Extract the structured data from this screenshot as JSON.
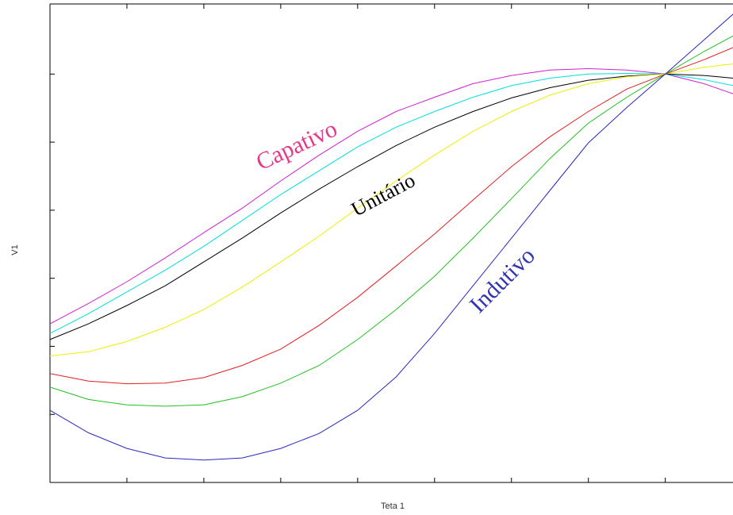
{
  "chart_data": {
    "type": "line",
    "xlabel": "Teta 1",
    "ylabel": "V1",
    "x": [
      0,
      0.5,
      1,
      1.5,
      2,
      2.5,
      3,
      3.5,
      4,
      4.5,
      5,
      5.5,
      6,
      6.5,
      7,
      7.5,
      8,
      8.5,
      8.88
    ],
    "series": [
      {
        "color": "#d020d0",
        "values": [
          2.33,
          2.63,
          2.95,
          3.3,
          3.67,
          4.03,
          4.43,
          4.81,
          5.16,
          5.45,
          5.66,
          5.86,
          5.98,
          6.06,
          6.08,
          6.06,
          6.0,
          5.86,
          5.71
        ]
      },
      {
        "color": "#00dede",
        "values": [
          2.19,
          2.48,
          2.8,
          3.12,
          3.47,
          3.85,
          4.23,
          4.58,
          4.93,
          5.22,
          5.45,
          5.66,
          5.83,
          5.94,
          6.0,
          6.01,
          6.0,
          5.92,
          5.83
        ]
      },
      {
        "color": "#000000",
        "values": [
          2.1,
          2.33,
          2.6,
          2.89,
          3.24,
          3.59,
          3.96,
          4.31,
          4.64,
          4.95,
          5.22,
          5.45,
          5.65,
          5.8,
          5.91,
          5.97,
          6.0,
          5.98,
          5.94
        ]
      },
      {
        "color": "#eeee00",
        "values": [
          1.86,
          1.92,
          2.07,
          2.28,
          2.54,
          2.87,
          3.24,
          3.62,
          4.03,
          4.43,
          4.81,
          5.16,
          5.45,
          5.69,
          5.86,
          5.96,
          6.0,
          6.1,
          6.15
        ]
      },
      {
        "color": "#e02020",
        "values": [
          1.6,
          1.49,
          1.45,
          1.46,
          1.54,
          1.72,
          1.96,
          2.31,
          2.72,
          3.18,
          3.65,
          4.15,
          4.64,
          5.08,
          5.45,
          5.78,
          6.0,
          6.21,
          6.39
        ]
      },
      {
        "color": "#20c020",
        "values": [
          1.4,
          1.22,
          1.14,
          1.12,
          1.14,
          1.26,
          1.46,
          1.72,
          2.1,
          2.54,
          3.03,
          3.59,
          4.17,
          4.76,
          5.28,
          5.66,
          6.0,
          6.33,
          6.56
        ]
      },
      {
        "color": "#2828c0",
        "values": [
          1.06,
          0.73,
          0.5,
          0.36,
          0.33,
          0.36,
          0.5,
          0.72,
          1.06,
          1.55,
          2.19,
          2.89,
          3.59,
          4.29,
          4.99,
          5.51,
          6.0,
          6.5,
          6.88
        ]
      }
    ],
    "annotations": [
      {
        "text": "Capativo",
        "color": "#e8388a"
      },
      {
        "text": "Unitário",
        "color": "#000000"
      },
      {
        "text": "Indutivo",
        "color": "#3434b4"
      }
    ],
    "xlim": [
      0,
      8.88
    ],
    "ylim": [
      0,
      7.03
    ],
    "xticks": [
      1,
      2,
      3,
      4,
      5,
      6,
      7,
      8
    ],
    "yticks": [
      1,
      2,
      3,
      4,
      5,
      6
    ],
    "grid": false
  }
}
